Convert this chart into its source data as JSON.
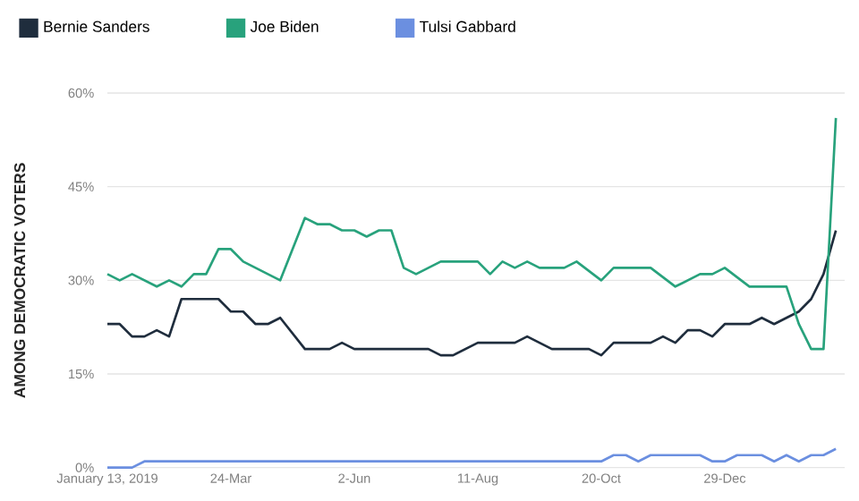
{
  "chart_data": {
    "type": "line",
    "ylabel": "AMONG DEMOCRATIC VOTERS",
    "xlim": [
      "2019-01-13",
      "2020-03-06"
    ],
    "xticks": [
      {
        "value": "2019-01-13",
        "label": "January 13, 2019"
      },
      {
        "value": "2019-03-24",
        "label": "24-Mar"
      },
      {
        "value": "2019-06-02",
        "label": "2-Jun"
      },
      {
        "value": "2019-08-11",
        "label": "11-Aug"
      },
      {
        "value": "2019-10-20",
        "label": "20-Oct"
      },
      {
        "value": "2019-12-29",
        "label": "29-Dec"
      }
    ],
    "ylim": [
      0,
      60
    ],
    "yticks": [
      {
        "value": 0,
        "label": "0%"
      },
      {
        "value": 15,
        "label": "15%"
      },
      {
        "value": 30,
        "label": "30%"
      },
      {
        "value": 45,
        "label": "45%"
      },
      {
        "value": 60,
        "label": "60%"
      }
    ],
    "grid": "y",
    "legend": "top left",
    "marker": "none",
    "line_style": "solid",
    "series": [
      {
        "name": "Bernie Sanders",
        "color": "#1f2d3d",
        "x": [
          "2019-01-13",
          "2019-01-20",
          "2019-01-27",
          "2019-02-03",
          "2019-02-10",
          "2019-02-17",
          "2019-02-24",
          "2019-03-17",
          "2019-03-24",
          "2019-03-31",
          "2019-04-07",
          "2019-04-14",
          "2019-04-21",
          "2019-05-05",
          "2019-05-19",
          "2019-05-26",
          "2019-06-02",
          "2019-07-14",
          "2019-07-21",
          "2019-07-28",
          "2019-08-11",
          "2019-09-01",
          "2019-09-08",
          "2019-09-22",
          "2019-10-13",
          "2019-10-20",
          "2019-10-27",
          "2019-11-17",
          "2019-11-24",
          "2019-12-01",
          "2019-12-08",
          "2019-12-15",
          "2019-12-22",
          "2019-12-29",
          "2020-01-12",
          "2020-01-19",
          "2020-01-26",
          "2020-02-02",
          "2020-02-09",
          "2020-02-16",
          "2020-02-23",
          "2020-03-01"
        ],
        "values": [
          23,
          23,
          21,
          21,
          22,
          21,
          27,
          27,
          25,
          25,
          23,
          23,
          24,
          19,
          19,
          20,
          19,
          19,
          18,
          18,
          20,
          20,
          21,
          19,
          19,
          18,
          20,
          20,
          21,
          20,
          22,
          22,
          21,
          23,
          23,
          24,
          23,
          24,
          25,
          27,
          31,
          38
        ]
      },
      {
        "name": "Joe Biden",
        "color": "#28a27c",
        "x": [
          "2019-01-13",
          "2019-01-20",
          "2019-01-27",
          "2019-02-10",
          "2019-02-17",
          "2019-02-24",
          "2019-03-03",
          "2019-03-10",
          "2019-03-17",
          "2019-03-24",
          "2019-03-31",
          "2019-04-21",
          "2019-05-05",
          "2019-05-12",
          "2019-05-19",
          "2019-05-26",
          "2019-06-02",
          "2019-06-09",
          "2019-06-16",
          "2019-06-23",
          "2019-06-30",
          "2019-07-07",
          "2019-07-14",
          "2019-07-21",
          "2019-08-11",
          "2019-08-18",
          "2019-08-25",
          "2019-09-01",
          "2019-09-08",
          "2019-09-15",
          "2019-09-29",
          "2019-10-06",
          "2019-10-20",
          "2019-10-27",
          "2019-11-17",
          "2019-12-01",
          "2019-12-15",
          "2019-12-22",
          "2019-12-29",
          "2020-01-12",
          "2020-02-02",
          "2020-02-09",
          "2020-02-16",
          "2020-02-23",
          "2020-03-01"
        ],
        "values": [
          31,
          30,
          31,
          29,
          30,
          29,
          31,
          31,
          35,
          35,
          33,
          30,
          40,
          39,
          39,
          38,
          38,
          37,
          38,
          38,
          32,
          31,
          32,
          33,
          33,
          31,
          33,
          32,
          33,
          32,
          32,
          33,
          30,
          32,
          32,
          29,
          31,
          31,
          32,
          29,
          29,
          23,
          19,
          19,
          56
        ]
      },
      {
        "name": "Tulsi Gabbard",
        "color": "#6b8fe0",
        "x": [
          "2019-01-13",
          "2019-01-27",
          "2019-02-03",
          "2019-10-20",
          "2019-10-27",
          "2019-11-03",
          "2019-11-10",
          "2019-11-17",
          "2019-12-15",
          "2019-12-22",
          "2019-12-29",
          "2020-01-05",
          "2020-01-19",
          "2020-01-26",
          "2020-02-02",
          "2020-02-09",
          "2020-02-16",
          "2020-02-23",
          "2020-03-01"
        ],
        "values": [
          0,
          0,
          1,
          1,
          2,
          2,
          1,
          2,
          2,
          1,
          1,
          2,
          2,
          1,
          2,
          1,
          2,
          2,
          3
        ]
      }
    ]
  }
}
